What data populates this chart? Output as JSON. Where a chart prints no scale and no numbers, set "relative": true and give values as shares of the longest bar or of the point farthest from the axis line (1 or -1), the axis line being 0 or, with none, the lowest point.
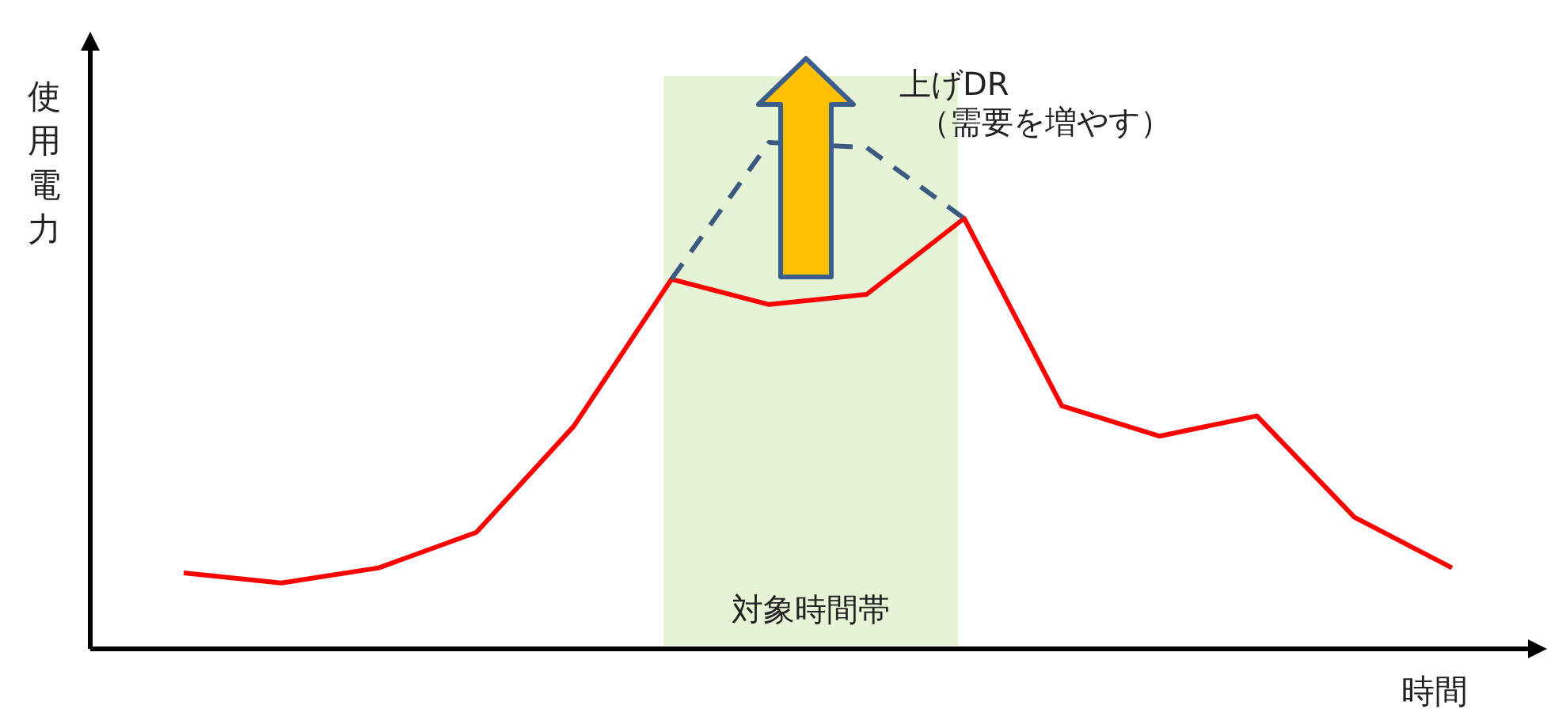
{
  "chart_data": {
    "type": "line",
    "relative": true,
    "xlabel": "時間",
    "ylabel": "使用電力",
    "categories": [
      null,
      null,
      null,
      null,
      null,
      null,
      null,
      null,
      null,
      null,
      null,
      null,
      null,
      null
    ],
    "series": [
      {
        "color": "#ff0000",
        "line_style": "solid",
        "values": [
          0.15,
          0.13,
          0.16,
          0.23,
          0.44,
          0.73,
          0.68,
          0.7,
          0.85,
          0.48,
          0.42,
          0.46,
          0.26,
          0.16
        ]
      },
      {
        "color": "#3b5a80",
        "line_style": "dashed",
        "values": [
          null,
          null,
          null,
          null,
          null,
          0.73,
          1.0,
          0.99,
          0.85,
          null,
          null,
          null,
          null,
          null
        ]
      }
    ],
    "annotations": [
      "上げDR",
      "（需要を増やす）",
      "対象時間帯"
    ],
    "marker": "none"
  }
}
